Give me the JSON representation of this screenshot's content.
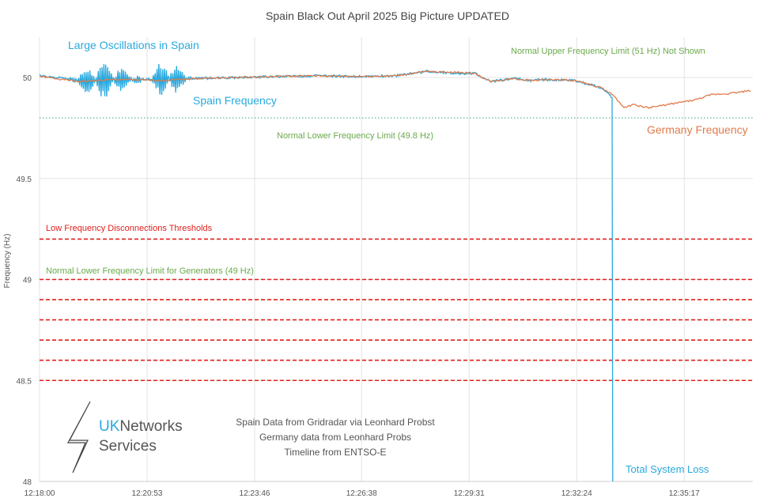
{
  "chart_data": {
    "type": "line",
    "title": "Spain Black Out April 2025 Big Picture UPDATED",
    "xlabel": "",
    "ylabel": "Frequency (Hz)",
    "ylim": [
      48,
      50.2
    ],
    "xlim_seconds": [
      0,
      1147
    ],
    "x_start": "12:18:00",
    "grid": true,
    "y_ticks": [
      48,
      48.5,
      49,
      49.5,
      50
    ],
    "x_ticks": [
      {
        "t": 0,
        "label": "12:18:00"
      },
      {
        "t": 173,
        "label": "12:20:53"
      },
      {
        "t": 346,
        "label": "12:23:46"
      },
      {
        "t": 518,
        "label": "12:26:38"
      },
      {
        "t": 691,
        "label": "12:29:31"
      },
      {
        "t": 864,
        "label": "12:32:24"
      },
      {
        "t": 1037,
        "label": "12:35:17"
      }
    ],
    "series": [
      {
        "name": "Germany Frequency",
        "color": "#e07b4a",
        "points": [
          [
            0,
            50.005
          ],
          [
            64,
            49.98
          ],
          [
            127,
            49.99
          ],
          [
            191,
            49.985
          ],
          [
            254,
            49.995
          ],
          [
            318,
            50.0
          ],
          [
            382,
            50.005
          ],
          [
            445,
            50.008
          ],
          [
            509,
            50.005
          ],
          [
            572,
            50.008
          ],
          [
            623,
            50.03
          ],
          [
            674,
            50.025
          ],
          [
            700,
            50.02
          ],
          [
            725,
            49.98
          ],
          [
            763,
            49.995
          ],
          [
            789,
            49.985
          ],
          [
            814,
            49.99
          ],
          [
            860,
            49.985
          ],
          [
            903,
            49.95
          ],
          [
            922,
            49.915
          ],
          [
            929,
            49.89
          ],
          [
            941,
            49.85
          ],
          [
            954,
            49.865
          ],
          [
            980,
            49.85
          ],
          [
            1018,
            49.87
          ],
          [
            1056,
            49.89
          ],
          [
            1081,
            49.915
          ],
          [
            1107,
            49.92
          ],
          [
            1145,
            49.935
          ]
        ]
      },
      {
        "name": "Spain Frequency",
        "color": "#29a9de",
        "points": [
          [
            0,
            50.01
          ],
          [
            64,
            49.985
          ],
          [
            127,
            49.99
          ],
          [
            191,
            49.99
          ],
          [
            254,
            49.995
          ],
          [
            318,
            50.0
          ],
          [
            382,
            50.005
          ],
          [
            445,
            50.008
          ],
          [
            509,
            50.005
          ],
          [
            572,
            50.008
          ],
          [
            623,
            50.03
          ],
          [
            674,
            50.02
          ],
          [
            700,
            50.02
          ],
          [
            725,
            49.98
          ],
          [
            763,
            49.995
          ],
          [
            789,
            49.985
          ],
          [
            814,
            49.99
          ],
          [
            860,
            49.985
          ],
          [
            903,
            49.95
          ],
          [
            918,
            49.91
          ],
          [
            921,
            49.9
          ],
          [
            922,
            48.0
          ]
        ],
        "oscillations": [
          {
            "t_start": 45,
            "t_end": 170,
            "peak_t": 100,
            "amplitude": 0.09
          },
          {
            "t_start": 170,
            "t_end": 245,
            "peak_t": 205,
            "amplitude": 0.1
          }
        ]
      }
    ],
    "reference_lines": [
      {
        "value": 49.8,
        "style": "dotted",
        "color": "#5bb5a0"
      },
      {
        "value": 49.2,
        "style": "dashed",
        "color": "#e0201b"
      },
      {
        "value": 49.0,
        "style": "dashed",
        "color": "#e0201b"
      },
      {
        "value": 48.9,
        "style": "dashed",
        "color": "#e0201b"
      },
      {
        "value": 48.8,
        "style": "dashed",
        "color": "#e0201b"
      },
      {
        "value": 48.7,
        "style": "dashed",
        "color": "#e0201b"
      },
      {
        "value": 48.6,
        "style": "dashed",
        "color": "#e0201b"
      },
      {
        "value": 48.5,
        "style": "dashed",
        "color": "#e0201b"
      }
    ],
    "annotations": {
      "oscillations": "Large Oscillations in Spain",
      "spain": "Spain Frequency",
      "germany": "Germany Frequency",
      "upper_limit": "Normal Upper Frequency Limit  (51 Hz)  Not Shown",
      "lower_limit": "Normal Lower  Frequency Limit  (49.8 Hz)",
      "disconnection": "Low Frequency Disconnections Thresholds",
      "generators": "Normal Lower Frequency Limit for Generators (49 Hz)",
      "loss": "Total System Loss",
      "source1": "Spain Data from Gridradar via Leonhard Probst",
      "source2": "Germany data from Leonhard Probs",
      "source3": "Timeline from ENTSO-E"
    },
    "logo": {
      "text1": "UK",
      "text2": "Networks",
      "text3": "Services"
    }
  }
}
